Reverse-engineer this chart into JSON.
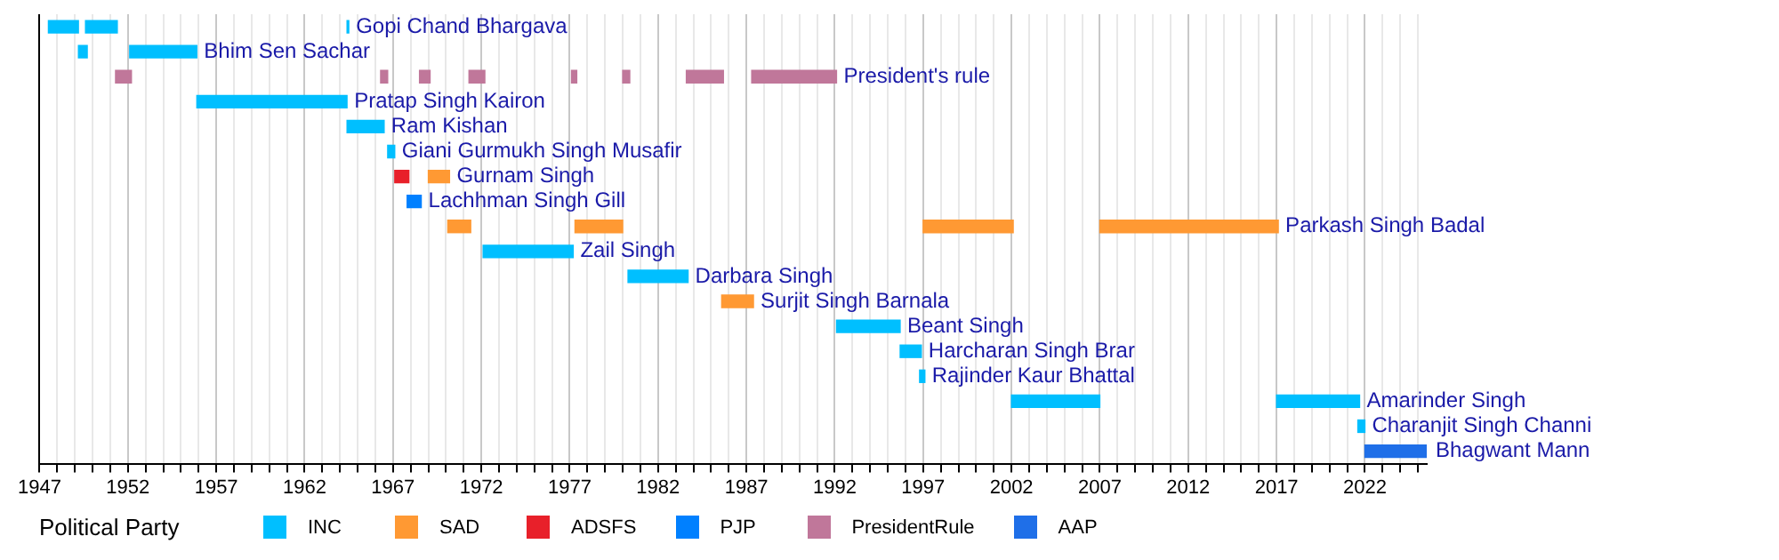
{
  "chart_data": {
    "type": "bar",
    "orientation": "horizontal",
    "legend_title": "Political Party",
    "legend": "bottom",
    "grid": "x",
    "tick_labels": "x",
    "categories": [
      "Gopi Chand Bhargava",
      "Bhim Sen Sachar",
      "President's rule",
      "Pratap Singh Kairon",
      "Ram Kishan",
      "Giani Gurmukh Singh Musafir",
      "Gurnam Singh",
      "Lachhman Singh Gill",
      "Parkash Singh Badal",
      "Zail Singh",
      "Darbara Singh",
      "Surjit Singh Barnala",
      "Beant Singh",
      "Harcharan Singh Brar",
      "Rajinder Kaur Bhattal",
      "Amarinder Singh",
      "Charanjit Singh Channi",
      "Bhagwant Mann"
    ],
    "xlim": [
      1947,
      2025.5
    ],
    "xticks": [
      1947,
      {
        "value": 1948,
        "label": null
      },
      {
        "value": 1949,
        "label": null
      },
      {
        "value": 1950,
        "label": null
      },
      {
        "value": 1951,
        "label": null
      },
      1952,
      {
        "value": 1953,
        "label": null
      },
      {
        "value": 1954,
        "label": null
      },
      {
        "value": 1955,
        "label": null
      },
      {
        "value": 1956,
        "label": null
      },
      1957,
      {
        "value": 1958,
        "label": null
      },
      {
        "value": 1959,
        "label": null
      },
      {
        "value": 1960,
        "label": null
      },
      {
        "value": 1961,
        "label": null
      },
      1962,
      {
        "value": 1963,
        "label": null
      },
      {
        "value": 1964,
        "label": null
      },
      {
        "value": 1965,
        "label": null
      },
      {
        "value": 1966,
        "label": null
      },
      1967,
      {
        "value": 1968,
        "label": null
      },
      {
        "value": 1969,
        "label": null
      },
      {
        "value": 1970,
        "label": null
      },
      {
        "value": 1971,
        "label": null
      },
      1972,
      {
        "value": 1973,
        "label": null
      },
      {
        "value": 1974,
        "label": null
      },
      {
        "value": 1975,
        "label": null
      },
      {
        "value": 1976,
        "label": null
      },
      1977,
      {
        "value": 1978,
        "label": null
      },
      {
        "value": 1979,
        "label": null
      },
      {
        "value": 1980,
        "label": null
      },
      {
        "value": 1981,
        "label": null
      },
      1982,
      {
        "value": 1983,
        "label": null
      },
      {
        "value": 1984,
        "label": null
      },
      {
        "value": 1985,
        "label": null
      },
      {
        "value": 1986,
        "label": null
      },
      1987,
      {
        "value": 1988,
        "label": null
      },
      {
        "value": 1989,
        "label": null
      },
      {
        "value": 1990,
        "label": null
      },
      {
        "value": 1991,
        "label": null
      },
      1992,
      {
        "value": 1993,
        "label": null
      },
      {
        "value": 1994,
        "label": null
      },
      {
        "value": 1995,
        "label": null
      },
      {
        "value": 1996,
        "label": null
      },
      1997,
      {
        "value": 1998,
        "label": null
      },
      {
        "value": 1999,
        "label": null
      },
      {
        "value": 2000,
        "label": null
      },
      {
        "value": 2001,
        "label": null
      },
      2002,
      {
        "value": 2003,
        "label": null
      },
      {
        "value": 2004,
        "label": null
      },
      {
        "value": 2005,
        "label": null
      },
      {
        "value": 2006,
        "label": null
      },
      2007,
      {
        "value": 2008,
        "label": null
      },
      {
        "value": 2009,
        "label": null
      },
      {
        "value": 2010,
        "label": null
      },
      {
        "value": 2011,
        "label": null
      },
      2012,
      {
        "value": 2013,
        "label": null
      },
      {
        "value": 2014,
        "label": null
      },
      {
        "value": 2015,
        "label": null
      },
      {
        "value": 2016,
        "label": null
      },
      2017,
      {
        "value": 2018,
        "label": null
      },
      {
        "value": 2019,
        "label": null
      },
      {
        "value": 2020,
        "label": null
      },
      {
        "value": 2021,
        "label": null
      },
      2022,
      {
        "value": 2023,
        "label": null
      },
      {
        "value": 2024,
        "label": null
      },
      {
        "value": 2025,
        "label": null
      }
    ],
    "series": [
      {
        "name": "INC",
        "color": "#00bfff",
        "base": [
          1947.5,
          1949.2,
          null,
          1955.9,
          1964.4,
          1966.7,
          null,
          null,
          null,
          1972.1,
          1980.3,
          null,
          1992.1,
          1995.7,
          1996.8,
          2002.0,
          2021.6,
          null
        ],
        "values": [
          1.7,
          0.5,
          null,
          8.5,
          2.1,
          0.4,
          null,
          null,
          null,
          5.1,
          3.4,
          null,
          3.6,
          1.2,
          0.3,
          5.0,
          0.4,
          null
        ]
      },
      {
        "color": "#00bfff",
        "base": [
          1949.6,
          1952.1,
          null,
          null,
          null,
          null,
          null,
          null,
          null,
          null,
          null,
          null,
          null,
          null,
          null,
          2017.0,
          null,
          null
        ],
        "values": [
          1.8,
          3.8,
          null,
          null,
          null,
          null,
          null,
          null,
          null,
          null,
          null,
          null,
          null,
          null,
          null,
          4.7,
          null,
          null
        ]
      },
      {
        "color": "#00bfff",
        "base": [
          1964.4,
          null,
          null,
          null,
          null,
          null,
          null,
          null,
          null,
          null,
          null,
          null,
          null,
          null,
          null,
          null,
          null,
          null
        ],
        "values": [
          0.1,
          null,
          null,
          null,
          null,
          null,
          null,
          null,
          null,
          null,
          null,
          null,
          null,
          null,
          null,
          null,
          null,
          null
        ]
      },
      {
        "name": "SAD",
        "color": "#ff9933",
        "base": [
          null,
          null,
          null,
          null,
          null,
          null,
          1969.0,
          null,
          1970.1,
          null,
          null,
          1985.6,
          null,
          null,
          null,
          null,
          null,
          null
        ],
        "values": [
          null,
          null,
          null,
          null,
          null,
          null,
          1.2,
          null,
          1.3,
          null,
          null,
          1.8,
          null,
          null,
          null,
          null,
          null,
          null
        ]
      },
      {
        "color": "#ff9933",
        "base": [
          null,
          null,
          null,
          null,
          null,
          null,
          null,
          null,
          1977.3,
          null,
          null,
          null,
          null,
          null,
          null,
          null,
          null,
          null
        ],
        "values": [
          null,
          null,
          null,
          null,
          null,
          null,
          null,
          null,
          2.7,
          null,
          null,
          null,
          null,
          null,
          null,
          null,
          null,
          null
        ]
      },
      {
        "color": "#ff9933",
        "base": [
          null,
          null,
          null,
          null,
          null,
          null,
          null,
          null,
          1997.0,
          null,
          null,
          null,
          null,
          null,
          null,
          null,
          null,
          null
        ],
        "values": [
          null,
          null,
          null,
          null,
          null,
          null,
          null,
          null,
          5.1,
          null,
          null,
          null,
          null,
          null,
          null,
          null,
          null,
          null
        ]
      },
      {
        "color": "#ff9933",
        "base": [
          null,
          null,
          null,
          null,
          null,
          null,
          null,
          null,
          2007.0,
          null,
          null,
          null,
          null,
          null,
          null,
          null,
          null,
          null
        ],
        "values": [
          null,
          null,
          null,
          null,
          null,
          null,
          null,
          null,
          10.1,
          null,
          null,
          null,
          null,
          null,
          null,
          null,
          null,
          null
        ]
      },
      {
        "name": "ADSFS",
        "color": "#e8202a",
        "base": [
          null,
          null,
          null,
          null,
          null,
          null,
          1967.1,
          null,
          null,
          null,
          null,
          null,
          null,
          null,
          null,
          null,
          null,
          null
        ],
        "values": [
          null,
          null,
          null,
          null,
          null,
          null,
          0.8,
          null,
          null,
          null,
          null,
          null,
          null,
          null,
          null,
          null,
          null,
          null
        ]
      },
      {
        "name": "PJP",
        "color": "#0080ff",
        "base": [
          null,
          null,
          null,
          null,
          null,
          null,
          null,
          1967.8,
          null,
          null,
          null,
          null,
          null,
          null,
          null,
          null,
          null,
          null
        ],
        "values": [
          null,
          null,
          null,
          null,
          null,
          null,
          null,
          0.8,
          null,
          null,
          null,
          null,
          null,
          null,
          null,
          null,
          null,
          null
        ]
      },
      {
        "name": "PresidentRule",
        "color": "#c0779a",
        "base": [
          null,
          null,
          1951.3,
          null,
          null,
          null,
          null,
          null,
          null,
          null,
          null,
          null,
          null,
          null,
          null,
          null,
          null,
          null
        ],
        "values": [
          null,
          null,
          0.9,
          null,
          null,
          null,
          null,
          null,
          null,
          null,
          null,
          null,
          null,
          null,
          null,
          null,
          null,
          null
        ]
      },
      {
        "color": "#c0779a",
        "base": [
          null,
          null,
          1966.3,
          null,
          null,
          null,
          null,
          null,
          null,
          null,
          null,
          null,
          null,
          null,
          null,
          null,
          null,
          null
        ],
        "values": [
          null,
          null,
          0.4,
          null,
          null,
          null,
          null,
          null,
          null,
          null,
          null,
          null,
          null,
          null,
          null,
          null,
          null,
          null
        ]
      },
      {
        "color": "#c0779a",
        "base": [
          null,
          null,
          1968.5,
          null,
          null,
          null,
          null,
          null,
          null,
          null,
          null,
          null,
          null,
          null,
          null,
          null,
          null,
          null
        ],
        "values": [
          null,
          null,
          0.6,
          null,
          null,
          null,
          null,
          null,
          null,
          null,
          null,
          null,
          null,
          null,
          null,
          null,
          null,
          null
        ]
      },
      {
        "color": "#c0779a",
        "base": [
          null,
          null,
          1971.3,
          null,
          null,
          null,
          null,
          null,
          null,
          null,
          null,
          null,
          null,
          null,
          null,
          null,
          null,
          null
        ],
        "values": [
          null,
          null,
          0.9,
          null,
          null,
          null,
          null,
          null,
          null,
          null,
          null,
          null,
          null,
          null,
          null,
          null,
          null,
          null
        ]
      },
      {
        "color": "#c0779a",
        "base": [
          null,
          null,
          1977.1,
          null,
          null,
          null,
          null,
          null,
          null,
          null,
          null,
          null,
          null,
          null,
          null,
          null,
          null,
          null
        ],
        "values": [
          null,
          null,
          0.3,
          null,
          null,
          null,
          null,
          null,
          null,
          null,
          null,
          null,
          null,
          null,
          null,
          null,
          null,
          null
        ]
      },
      {
        "color": "#c0779a",
        "base": [
          null,
          null,
          1980.0,
          null,
          null,
          null,
          null,
          null,
          null,
          null,
          null,
          null,
          null,
          null,
          null,
          null,
          null,
          null
        ],
        "values": [
          null,
          null,
          0.4,
          null,
          null,
          null,
          null,
          null,
          null,
          null,
          null,
          null,
          null,
          null,
          null,
          null,
          null,
          null
        ]
      },
      {
        "color": "#c0779a",
        "base": [
          null,
          null,
          1983.6,
          null,
          null,
          null,
          null,
          null,
          null,
          null,
          null,
          null,
          null,
          null,
          null,
          null,
          null,
          null
        ],
        "values": [
          null,
          null,
          2.1,
          null,
          null,
          null,
          null,
          null,
          null,
          null,
          null,
          null,
          null,
          null,
          null,
          null,
          null,
          null
        ]
      },
      {
        "color": "#c0779a",
        "base": [
          null,
          null,
          1987.3,
          null,
          null,
          null,
          null,
          null,
          null,
          null,
          null,
          null,
          null,
          null,
          null,
          null,
          null,
          null
        ],
        "values": [
          null,
          null,
          4.8,
          null,
          null,
          null,
          null,
          null,
          null,
          null,
          null,
          null,
          null,
          null,
          null,
          null,
          null,
          null
        ]
      },
      {
        "name": "AAP",
        "color": "#1f6fe8",
        "base": [
          null,
          null,
          null,
          null,
          null,
          null,
          null,
          null,
          null,
          null,
          null,
          null,
          null,
          null,
          null,
          null,
          null,
          2022.0
        ],
        "values": [
          null,
          null,
          null,
          null,
          null,
          null,
          null,
          null,
          null,
          null,
          null,
          null,
          null,
          null,
          null,
          null,
          null,
          3.6
        ]
      }
    ]
  }
}
